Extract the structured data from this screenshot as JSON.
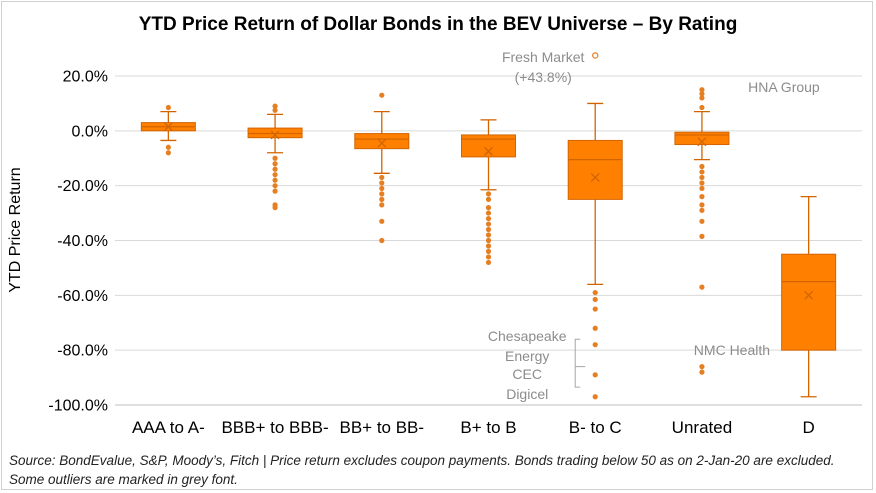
{
  "chart_data": {
    "type": "boxplot",
    "title": "YTD Price Return of Dollar Bonds in the BEV Universe – By Rating",
    "xlabel": "",
    "ylabel": "YTD Price Return",
    "ylim": [
      -100,
      20
    ],
    "yticks": [
      20,
      0,
      -20,
      -40,
      -60,
      -80,
      -100
    ],
    "ytick_labels": [
      "20.0%",
      "0.0%",
      "-20.0%",
      "-40.0%",
      "-60.0%",
      "-80.0%",
      "-100.0%"
    ],
    "categories": [
      "AAA to A-",
      "BBB+ to BBB-",
      "BB+ to BB-",
      "B+ to B",
      "B- to C",
      "Unrated",
      "D"
    ],
    "boxes": [
      {
        "category": "AAA to A-",
        "whisker_low": -3.5,
        "q1": 0,
        "median": 1.5,
        "q3": 3,
        "whisker_high": 7,
        "mean": 1.5,
        "outliers": [
          8.5,
          -6,
          -8
        ]
      },
      {
        "category": "BBB+ to BBB-",
        "whisker_low": -8,
        "q1": -2.5,
        "median": -1,
        "q3": 1,
        "whisker_high": 6,
        "mean": -1.5,
        "outliers": [
          7.5,
          9,
          -10,
          -12,
          -14,
          -16,
          -18,
          -20,
          -22,
          -27,
          -28
        ]
      },
      {
        "category": "BB+ to BB-",
        "whisker_low": -15.5,
        "q1": -6.5,
        "median": -3,
        "q3": -1,
        "whisker_high": 7,
        "mean": -4.5,
        "outliers": [
          13,
          -17,
          -19,
          -21,
          -23,
          -25,
          -27,
          -33,
          -40
        ]
      },
      {
        "category": "B+ to B",
        "whisker_low": -21.5,
        "q1": -9.5,
        "median": -3,
        "q3": -1.5,
        "whisker_high": 4,
        "mean": -7.5,
        "outliers": [
          -23,
          -25,
          -28,
          -30,
          -32,
          -34,
          -36,
          -38,
          -40,
          -42,
          -44,
          -46,
          -48
        ]
      },
      {
        "category": "B- to C",
        "whisker_low": -56,
        "q1": -25,
        "median": -10.5,
        "q3": -3.5,
        "whisker_high": 10,
        "mean": -17,
        "outliers": [
          27.5,
          -59,
          -61.5,
          -65,
          -72,
          -78,
          -89,
          -97
        ]
      },
      {
        "category": "Unrated",
        "whisker_low": -10.5,
        "q1": -5,
        "median": -1.5,
        "q3": -0.5,
        "whisker_high": 7,
        "mean": -4,
        "outliers": [
          8.5,
          12,
          13.5,
          15,
          -13,
          -15,
          -17,
          -19,
          -21,
          -24,
          -27,
          -29,
          -33,
          -38.5,
          -57,
          -86,
          -88
        ]
      },
      {
        "category": "D",
        "whisker_low": -97,
        "q1": -80,
        "median": -55,
        "q3": -45,
        "whisker_high": -24,
        "mean": -60,
        "outliers": []
      }
    ],
    "annotations": [
      {
        "text": "Fresh Market",
        "category": "B- to C"
      },
      {
        "text": "(+43.8%)",
        "category": "B- to C"
      },
      {
        "text": "HNA Group",
        "category": "Unrated"
      },
      {
        "text": "NMC Health",
        "category": "Unrated"
      },
      {
        "text": "Chesapeake",
        "category": "B- to C"
      },
      {
        "text": "Energy",
        "category": "B- to C"
      },
      {
        "text": "CEC",
        "category": "B- to C"
      },
      {
        "text": "Digicel",
        "category": "B- to C"
      }
    ],
    "colors": {
      "box_fill": "#FF8000",
      "box_edge": "#D26400",
      "whisker": "#D26400",
      "outlier": "#E67E22",
      "grid": "#D9D9D9",
      "annotation": "#8C8C8C"
    }
  },
  "footnote": "Source: BondEvalue, S&P, Moody’s, Fitch | Price return excludes coupon payments. Bonds trading below 50 as on 2-Jan-20 are excluded. Some outliers are marked in grey font."
}
